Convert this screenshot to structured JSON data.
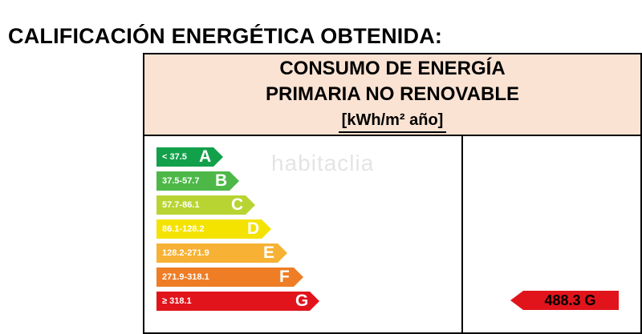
{
  "title": "CALIFICACIÓN ENERGÉTICA OBTENIDA:",
  "header": {
    "line1": "CONSUMO DE ENERGÍA",
    "line2": "PRIMARIA NO RENOVABLE",
    "unit": "[kWh/m² año]"
  },
  "watermark": "habitaclia",
  "ratings": [
    {
      "letter": "A",
      "range": "< 37.5",
      "color": "#12a04b"
    },
    {
      "letter": "B",
      "range": "37.5-57.7",
      "color": "#4db848"
    },
    {
      "letter": "C",
      "range": "57.7-86.1",
      "color": "#b8d433"
    },
    {
      "letter": "D",
      "range": "86.1-128.2",
      "color": "#f4e300"
    },
    {
      "letter": "E",
      "range": "128.2-271.9",
      "color": "#f7b134"
    },
    {
      "letter": "F",
      "range": "271.9-318.1",
      "color": "#ee7d26"
    },
    {
      "letter": "G",
      "range": "≥ 318.1",
      "color": "#e1141c"
    }
  ],
  "result": {
    "value": "488.3 G",
    "rating": "G",
    "color": "#e1141c"
  }
}
